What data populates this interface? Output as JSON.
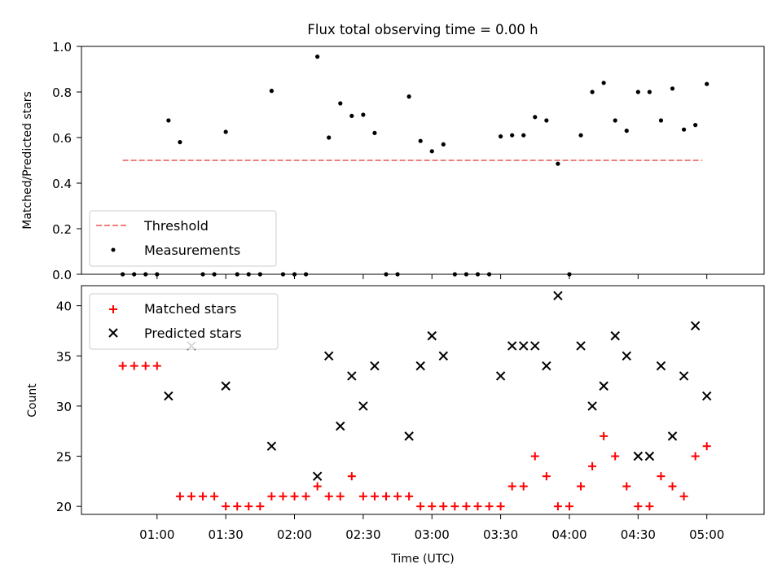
{
  "chart_data": [
    {
      "type": "scatter",
      "title": "Flux total observing time = 0.00 h",
      "xlabel": "",
      "ylabel": "Matched/Predicted stars",
      "ylim": [
        0,
        1
      ],
      "yticks": [
        0.0,
        0.2,
        0.4,
        0.6,
        0.8,
        1.0
      ],
      "ytick_labels": [
        "0.0",
        "0.2",
        "0.4",
        "0.6",
        "0.8",
        "1.0"
      ],
      "legend": {
        "placement": "lower-left",
        "entries": [
          "Threshold",
          "Measurements"
        ]
      },
      "threshold": {
        "name": "Threshold",
        "value": 0.5,
        "x_start": "00:45",
        "x_end": "04:58",
        "color": "#f08080"
      },
      "series": [
        {
          "name": "Measurements",
          "marker": "dot",
          "color": "#000000",
          "x": [
            "00:45",
            "00:50",
            "00:55",
            "01:00",
            "01:05",
            "01:10",
            "01:20",
            "01:25",
            "01:30",
            "01:35",
            "01:40",
            "01:45",
            "01:50",
            "01:55",
            "02:00",
            "02:05",
            "02:10",
            "02:15",
            "02:20",
            "02:25",
            "02:30",
            "02:35",
            "02:40",
            "02:45",
            "02:50",
            "02:55",
            "03:00",
            "03:05",
            "03:10",
            "03:15",
            "03:20",
            "03:25",
            "03:30",
            "03:35",
            "03:40",
            "03:45",
            "03:50",
            "03:55",
            "04:00",
            "04:05",
            "04:10",
            "04:15",
            "04:20",
            "04:25",
            "04:30",
            "04:35",
            "04:40",
            "04:45",
            "04:50",
            "04:55",
            "05:00"
          ],
          "y": [
            0.0,
            0.0,
            0.0,
            0.0,
            0.675,
            0.58,
            0.0,
            0.0,
            0.625,
            0.0,
            0.0,
            0.0,
            0.805,
            0.0,
            0.0,
            0.0,
            0.955,
            0.6,
            0.75,
            0.695,
            0.7,
            0.62,
            0.0,
            0.0,
            0.78,
            0.585,
            0.54,
            0.57,
            0.0,
            0.0,
            0.0,
            0.0,
            0.605,
            0.61,
            0.61,
            0.69,
            0.675,
            0.485,
            0.0,
            0.61,
            0.8,
            0.84,
            0.675,
            0.63,
            0.8,
            0.8,
            0.675,
            0.815,
            0.635,
            0.655,
            0.835
          ]
        }
      ]
    },
    {
      "type": "scatter",
      "title": "",
      "xlabel": "Time (UTC)",
      "ylabel": "Count",
      "yticks": [
        20,
        25,
        30,
        35,
        40
      ],
      "ytick_labels": [
        "20",
        "25",
        "30",
        "35",
        "40"
      ],
      "xticks": [
        "01:00",
        "01:30",
        "02:00",
        "02:30",
        "03:00",
        "03:30",
        "04:00",
        "04:30",
        "05:00"
      ],
      "legend": {
        "placement": "upper-left",
        "entries": [
          "Matched stars",
          "Predicted stars"
        ]
      },
      "series": [
        {
          "name": "Matched stars",
          "marker": "plus",
          "color": "#ff0000",
          "x": [
            "00:45",
            "00:50",
            "00:55",
            "01:00",
            "01:10",
            "01:15",
            "01:20",
            "01:25",
            "01:30",
            "01:35",
            "01:40",
            "01:45",
            "01:50",
            "01:55",
            "02:00",
            "02:05",
            "02:10",
            "02:15",
            "02:20",
            "02:25",
            "02:30",
            "02:35",
            "02:40",
            "02:45",
            "02:50",
            "02:55",
            "03:00",
            "03:05",
            "03:10",
            "03:15",
            "03:20",
            "03:25",
            "03:30",
            "03:35",
            "03:40",
            "03:45",
            "03:50",
            "03:55",
            "04:00",
            "04:05",
            "04:10",
            "04:15",
            "04:20",
            "04:25",
            "04:30",
            "04:35",
            "04:40",
            "04:45",
            "04:50",
            "04:55",
            "05:00"
          ],
          "y": [
            34,
            34,
            34,
            34,
            21,
            21,
            21,
            21,
            20,
            20,
            20,
            20,
            21,
            21,
            21,
            21,
            22,
            21,
            21,
            23,
            21,
            21,
            21,
            21,
            21,
            20,
            20,
            20,
            20,
            20,
            20,
            20,
            20,
            22,
            22,
            25,
            23,
            20,
            20,
            22,
            24,
            27,
            25,
            22,
            20,
            20,
            23,
            22,
            21,
            25,
            26
          ]
        },
        {
          "name": "Predicted stars",
          "marker": "x",
          "color": "#000000",
          "x": [
            "01:05",
            "01:15",
            "01:30",
            "01:50",
            "02:10",
            "02:15",
            "02:20",
            "02:25",
            "02:30",
            "02:35",
            "02:50",
            "02:55",
            "03:00",
            "03:05",
            "03:30",
            "03:35",
            "03:40",
            "03:45",
            "03:50",
            "03:55",
            "04:05",
            "04:10",
            "04:15",
            "04:20",
            "04:25",
            "04:30",
            "04:35",
            "04:40",
            "04:45",
            "04:50",
            "04:55",
            "05:00"
          ],
          "y": [
            31,
            36,
            32,
            26,
            23,
            35,
            28,
            33,
            30,
            34,
            27,
            34,
            37,
            35,
            33,
            36,
            36,
            36,
            34,
            41,
            36,
            30,
            32,
            37,
            35,
            25,
            25,
            34,
            27,
            33,
            38,
            31
          ]
        }
      ]
    }
  ]
}
